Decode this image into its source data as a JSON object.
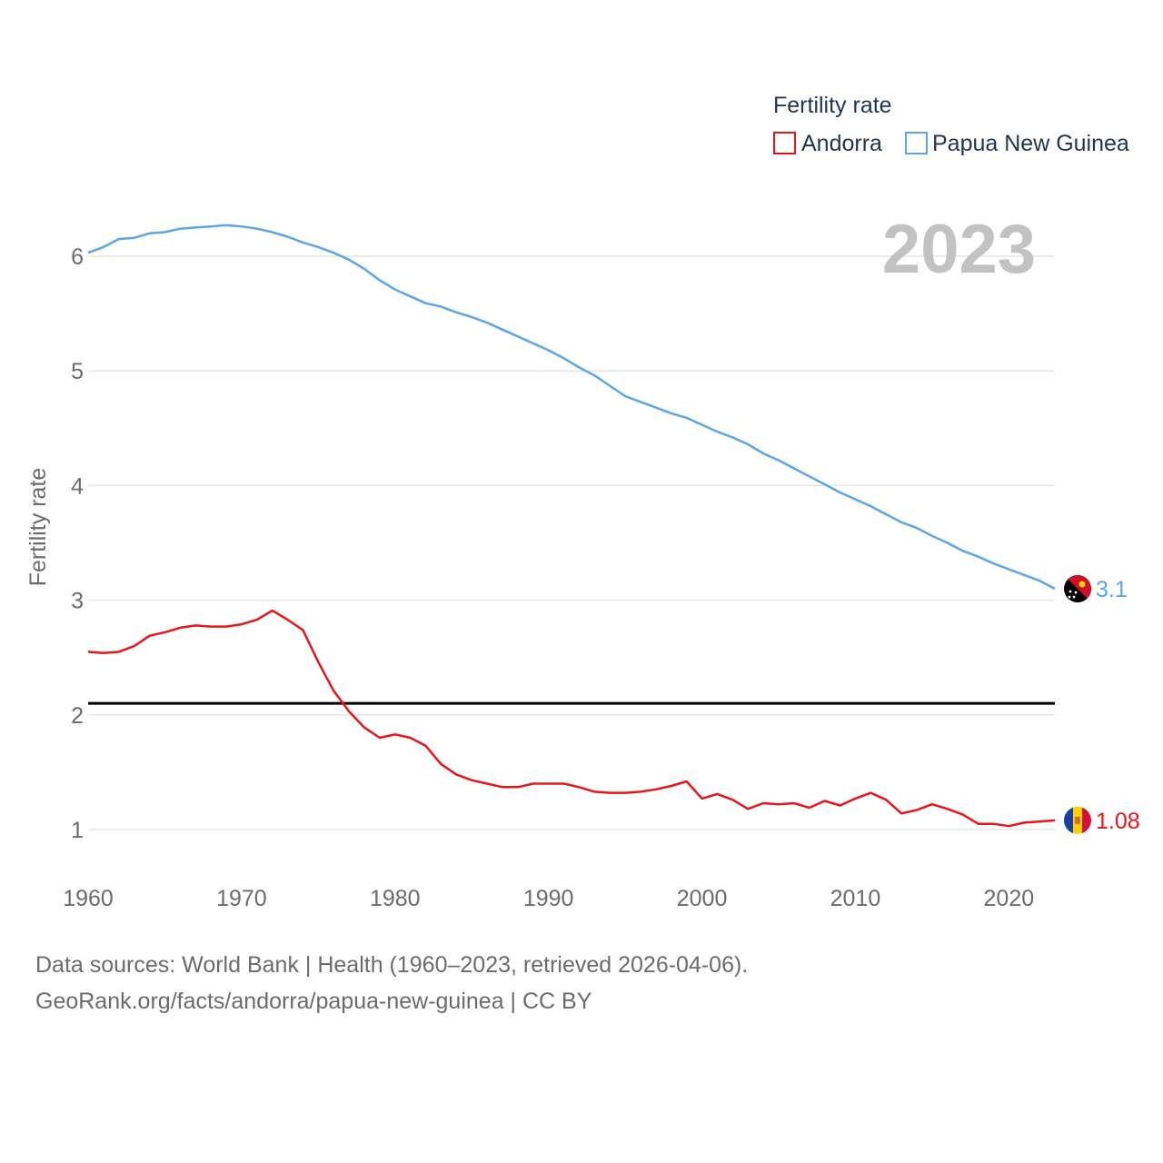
{
  "chart_data": {
    "type": "line",
    "ylabel": "Fertility rate",
    "legend_title": "Fertility rate",
    "legend_position": "top-right",
    "year_label": "2023",
    "reference_line": 2.1,
    "xlim": [
      1960,
      2023
    ],
    "ylim": [
      0.5,
      6.6
    ],
    "x_ticks": [
      1960,
      1970,
      1980,
      1990,
      2000,
      2010,
      2020
    ],
    "y_ticks": [
      1,
      2,
      3,
      4,
      5,
      6
    ],
    "x": [
      1960,
      1961,
      1962,
      1963,
      1964,
      1965,
      1966,
      1967,
      1968,
      1969,
      1970,
      1971,
      1972,
      1973,
      1974,
      1975,
      1976,
      1977,
      1978,
      1979,
      1980,
      1981,
      1982,
      1983,
      1984,
      1985,
      1986,
      1987,
      1988,
      1989,
      1990,
      1991,
      1992,
      1993,
      1994,
      1995,
      1996,
      1997,
      1998,
      1999,
      2000,
      2001,
      2002,
      2003,
      2004,
      2005,
      2006,
      2007,
      2008,
      2009,
      2010,
      2011,
      2012,
      2013,
      2014,
      2015,
      2016,
      2017,
      2018,
      2019,
      2020,
      2021,
      2022,
      2023
    ],
    "series": [
      {
        "name": "Andorra",
        "color": "#e8161b",
        "end_label": "1.08",
        "flag": "andorra-flag",
        "values": [
          2.55,
          2.54,
          2.55,
          2.6,
          2.69,
          2.72,
          2.76,
          2.78,
          2.77,
          2.77,
          2.79,
          2.83,
          2.91,
          2.83,
          2.74,
          2.46,
          2.21,
          2.03,
          1.89,
          1.8,
          1.83,
          1.8,
          1.73,
          1.57,
          1.48,
          1.43,
          1.4,
          1.37,
          1.37,
          1.4,
          1.4,
          1.4,
          1.37,
          1.33,
          1.32,
          1.32,
          1.33,
          1.35,
          1.38,
          1.42,
          1.27,
          1.31,
          1.26,
          1.18,
          1.23,
          1.22,
          1.23,
          1.19,
          1.25,
          1.21,
          1.27,
          1.32,
          1.26,
          1.14,
          1.17,
          1.22,
          1.18,
          1.13,
          1.05,
          1.05,
          1.03,
          1.06,
          1.07,
          1.08
        ]
      },
      {
        "name": "Papua New Guinea",
        "color": "#5aa6e6",
        "end_label": "3.1",
        "flag": "papua-new-guinea-flag",
        "values": [
          6.03,
          6.08,
          6.15,
          6.16,
          6.2,
          6.21,
          6.24,
          6.25,
          6.26,
          6.27,
          6.26,
          6.24,
          6.21,
          6.17,
          6.12,
          6.08,
          6.03,
          5.97,
          5.89,
          5.79,
          5.71,
          5.65,
          5.59,
          5.56,
          5.51,
          5.47,
          5.42,
          5.36,
          5.3,
          5.24,
          5.18,
          5.11,
          5.03,
          4.96,
          4.87,
          4.78,
          4.73,
          4.68,
          4.63,
          4.59,
          4.53,
          4.47,
          4.42,
          4.36,
          4.28,
          4.22,
          4.15,
          4.08,
          4.01,
          3.94,
          3.88,
          3.82,
          3.75,
          3.68,
          3.63,
          3.56,
          3.5,
          3.43,
          3.38,
          3.32,
          3.27,
          3.22,
          3.17,
          3.1
        ]
      }
    ]
  },
  "footer": {
    "line1": "Data sources: World Bank | Health (1960–2023, retrieved 2026-04-06).",
    "line2": "GeoRank.org/facts/andorra/papua-new-guinea | CC BY"
  }
}
